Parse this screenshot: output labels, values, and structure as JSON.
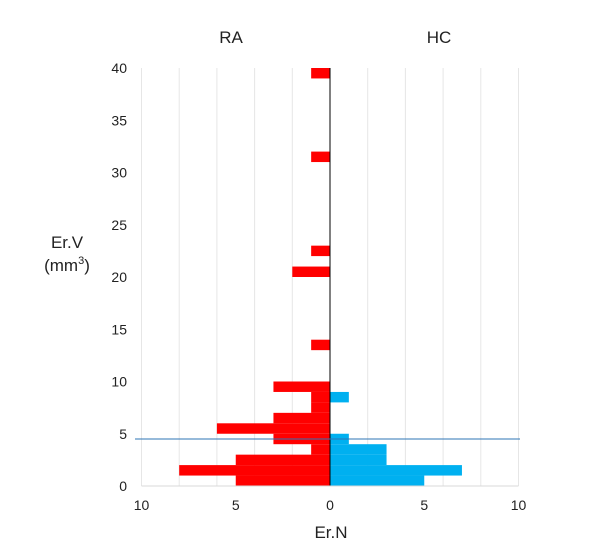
{
  "chart_data": {
    "type": "bar",
    "orientation": "horizontal",
    "layout": "back-to-back",
    "group_labels": {
      "left": "RA",
      "right": "HC"
    },
    "xlabel": "Er.N",
    "ylabel_line1": "Er.V",
    "ylabel_line2_base": "(mm",
    "ylabel_line2_sup": "3",
    "ylabel_line2_end": ")",
    "xlim_each_side": [
      0,
      10
    ],
    "x_ticks": [
      "10",
      "5",
      "0",
      "5",
      "10"
    ],
    "ylim": [
      0,
      40
    ],
    "y_ticks": [
      "0",
      "5",
      "10",
      "15",
      "20",
      "25",
      "30",
      "35",
      "40"
    ],
    "bin_height": 1,
    "reference_line_y": 4.5,
    "grid": "vertical",
    "series": [
      {
        "name": "RA",
        "side": "left",
        "color": "#ff0000",
        "bins": [
          {
            "y0": 0,
            "count": 5
          },
          {
            "y0": 1,
            "count": 8
          },
          {
            "y0": 2,
            "count": 5
          },
          {
            "y0": 3,
            "count": 1
          },
          {
            "y0": 4,
            "count": 3
          },
          {
            "y0": 5,
            "count": 6
          },
          {
            "y0": 6,
            "count": 3
          },
          {
            "y0": 7,
            "count": 1
          },
          {
            "y0": 8,
            "count": 1
          },
          {
            "y0": 9,
            "count": 3
          },
          {
            "y0": 13,
            "count": 1
          },
          {
            "y0": 20,
            "count": 2
          },
          {
            "y0": 22,
            "count": 1
          },
          {
            "y0": 31,
            "count": 1
          },
          {
            "y0": 39,
            "count": 1
          }
        ]
      },
      {
        "name": "HC",
        "side": "right",
        "color": "#00b0f0",
        "bins": [
          {
            "y0": 0,
            "count": 5
          },
          {
            "y0": 1,
            "count": 7
          },
          {
            "y0": 2,
            "count": 3
          },
          {
            "y0": 3,
            "count": 3
          },
          {
            "y0": 4,
            "count": 1
          },
          {
            "y0": 8,
            "count": 1
          }
        ]
      }
    ],
    "colors": {
      "grid": "#e6e6e6",
      "axis": "#000000",
      "reference_line": "#2e75b6"
    }
  }
}
